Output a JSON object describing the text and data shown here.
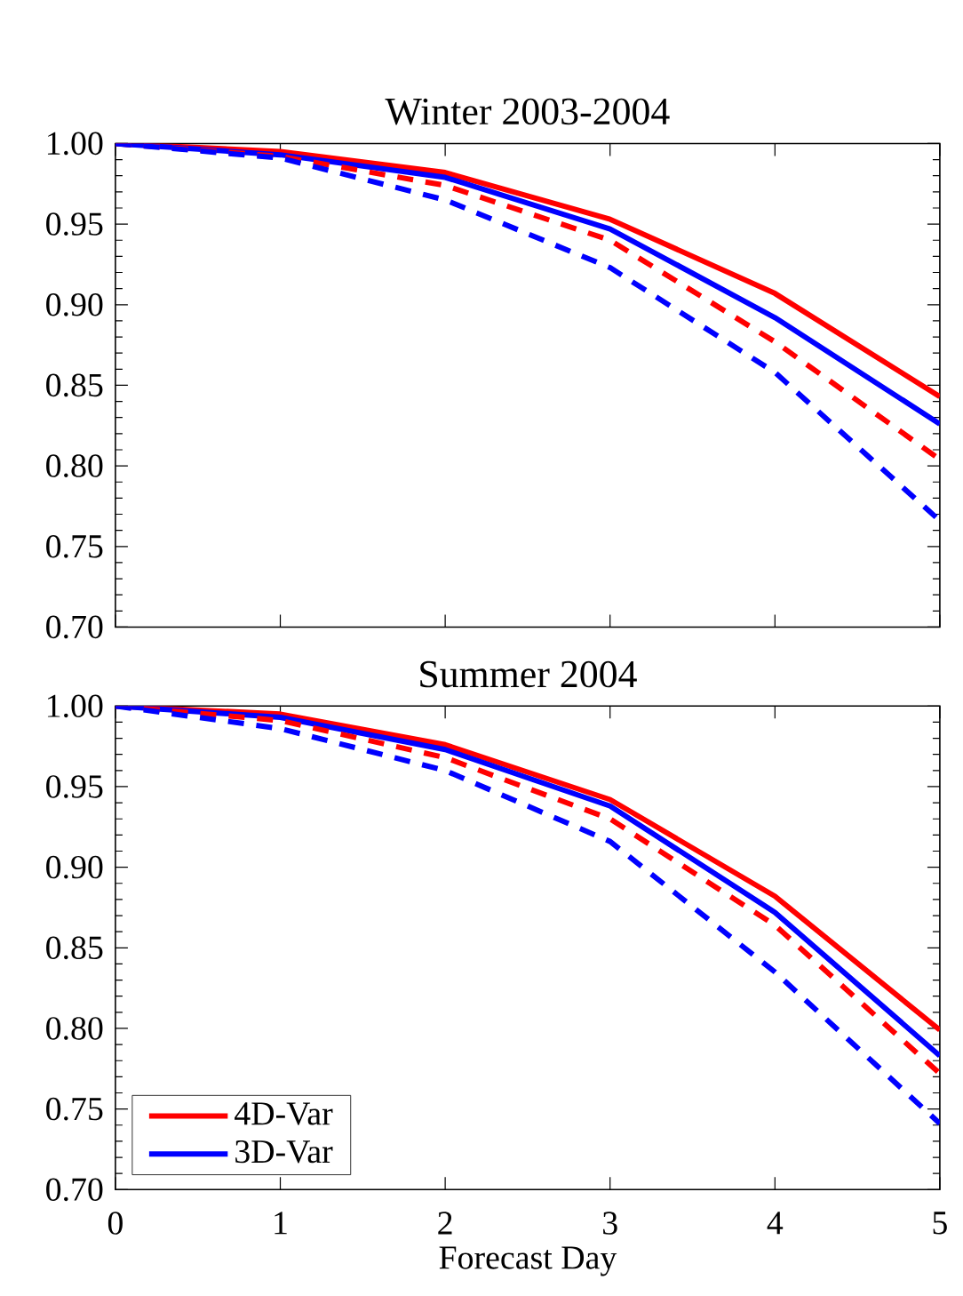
{
  "chart_data": [
    {
      "type": "line",
      "title": "Winter 2003-2004",
      "x": [
        0,
        1,
        2,
        3,
        4,
        5
      ],
      "xlim": [
        0,
        5
      ],
      "xticks": [
        0,
        1,
        2,
        3,
        4,
        5
      ],
      "ylim": [
        0.7,
        1.0
      ],
      "yticks": [
        {
          "value": 0.7,
          "label": "0.70"
        },
        {
          "value": 0.75,
          "label": "0.75"
        },
        {
          "value": 0.8,
          "label": "0.80"
        },
        {
          "value": 0.85,
          "label": "0.85"
        },
        {
          "value": 0.9,
          "label": "0.90"
        },
        {
          "value": 0.95,
          "label": "0.95"
        },
        {
          "value": 1.0,
          "label": "1.00"
        }
      ],
      "tick_labels": "y",
      "grid": false,
      "legend": false,
      "series": [
        {
          "color": "#ff0000",
          "line_style": "solid",
          "values": [
            1.0,
            0.995,
            0.982,
            0.953,
            0.907,
            0.843
          ]
        },
        {
          "color": "#0000ff",
          "line_style": "solid",
          "values": [
            1.0,
            0.993,
            0.979,
            0.947,
            0.892,
            0.826
          ]
        },
        {
          "color": "#ff0000",
          "line_style": "dashed",
          "values": [
            1.0,
            0.992,
            0.974,
            0.94,
            0.877,
            0.804
          ]
        },
        {
          "color": "#0000ff",
          "line_style": "dashed",
          "values": [
            1.0,
            0.991,
            0.965,
            0.923,
            0.858,
            0.766
          ]
        }
      ]
    },
    {
      "type": "line",
      "title": "Summer 2004",
      "xlabel": "Forecast Day",
      "x": [
        0,
        1,
        2,
        3,
        4,
        5
      ],
      "xlim": [
        0,
        5
      ],
      "xticks": [
        0,
        1,
        2,
        3,
        4,
        5
      ],
      "ylim": [
        0.7,
        1.0
      ],
      "yticks": [
        {
          "value": 0.7,
          "label": "0.70"
        },
        {
          "value": 0.75,
          "label": "0.75"
        },
        {
          "value": 0.8,
          "label": "0.80"
        },
        {
          "value": 0.85,
          "label": "0.85"
        },
        {
          "value": 0.9,
          "label": "0.90"
        },
        {
          "value": 0.95,
          "label": "0.95"
        },
        {
          "value": 1.0,
          "label": "1.00"
        }
      ],
      "grid": false,
      "legend": "bottom left",
      "series": [
        {
          "name": "4D-Var",
          "color": "#ff0000",
          "line_style": "solid",
          "values": [
            1.0,
            0.995,
            0.976,
            0.942,
            0.882,
            0.799
          ]
        },
        {
          "name": "3D-Var",
          "color": "#0000ff",
          "line_style": "solid",
          "values": [
            1.0,
            0.993,
            0.973,
            0.938,
            0.872,
            0.783
          ]
        },
        {
          "color": "#ff0000",
          "line_style": "dashed",
          "values": [
            1.0,
            0.991,
            0.968,
            0.93,
            0.864,
            0.772
          ]
        },
        {
          "color": "#0000ff",
          "line_style": "dashed",
          "values": [
            1.0,
            0.986,
            0.96,
            0.916,
            0.835,
            0.741
          ]
        }
      ]
    }
  ]
}
